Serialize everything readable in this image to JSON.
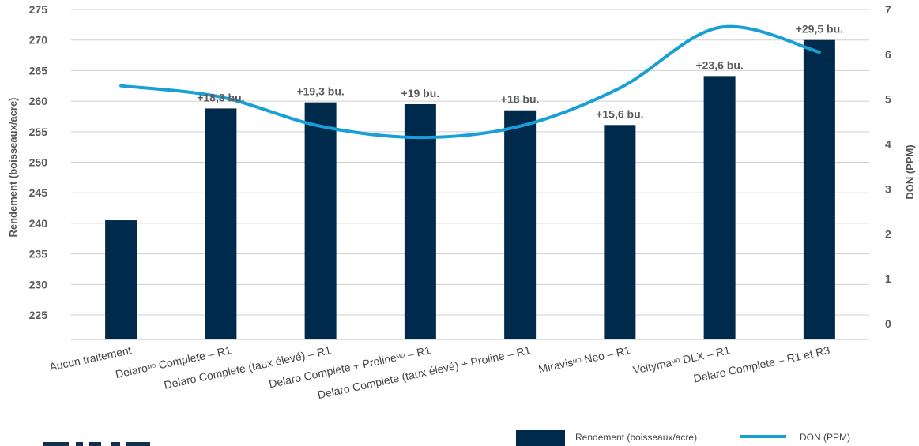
{
  "chart_data": {
    "type": "bar",
    "categories": [
      "Aucun traitement",
      "DelaroMD Complete – R1",
      "Delaro Complete (taux élevé) – R1",
      "Delaro Complete + ProlineMD – R1",
      "Delaro Complete (taux élevé) + Proline – R1",
      "MiravisMD Neo – R1",
      "VeltymaMD DLX – R1",
      "Delaro Complete – R1 et R3"
    ],
    "category_parts": [
      [
        {
          "t": "Aucun traitement"
        }
      ],
      [
        {
          "t": "Delaro"
        },
        {
          "t": "MD",
          "sup": true
        },
        {
          "t": " Complete – R1"
        }
      ],
      [
        {
          "t": "Delaro Complete (taux élevé) – R1"
        }
      ],
      [
        {
          "t": "Delaro Complete + Proline"
        },
        {
          "t": "MD",
          "sup": true
        },
        {
          "t": " – R1"
        }
      ],
      [
        {
          "t": "Delaro Complete (taux élevé) + Proline – R1"
        }
      ],
      [
        {
          "t": "Miravis"
        },
        {
          "t": "MD",
          "sup": true
        },
        {
          "t": " Neo – R1"
        }
      ],
      [
        {
          "t": "Veltyma"
        },
        {
          "t": "MD",
          "sup": true
        },
        {
          "t": " DLX – R1"
        }
      ],
      [
        {
          "t": "Delaro Complete – R1 et R3"
        }
      ]
    ],
    "series": [
      {
        "name": "Rendement (boisseaux/acre)",
        "type": "bar",
        "axis": "left",
        "color": "#002a4b",
        "values": [
          240.5,
          258.8,
          259.8,
          259.5,
          258.5,
          256.1,
          264.1,
          270.0
        ],
        "labels": [
          "",
          "+18,3 bu.",
          "+19,3 bu.",
          "+19 bu.",
          "+18 bu.",
          "+15,6 bu.",
          "+23,6 bu.",
          "+29,5 bu."
        ]
      },
      {
        "name": "DON (PPM)",
        "type": "line",
        "axis": "right",
        "color": "#16a0d6",
        "values": [
          5.3,
          5.05,
          4.4,
          4.15,
          4.4,
          5.25,
          6.6,
          6.05
        ]
      }
    ],
    "left_axis": {
      "title": "Rendement (boisseaux/acre)",
      "ylim": [
        221,
        275
      ],
      "ticks": [
        225,
        230,
        235,
        240,
        245,
        250,
        255,
        260,
        265,
        270,
        275
      ]
    },
    "right_axis": {
      "title": "DON (PPM)",
      "ylim": [
        -0.35,
        7
      ],
      "ticks": [
        0,
        1,
        2,
        3,
        4,
        5,
        6,
        7
      ]
    },
    "grid": true,
    "legend_position": "bottom-right"
  }
}
